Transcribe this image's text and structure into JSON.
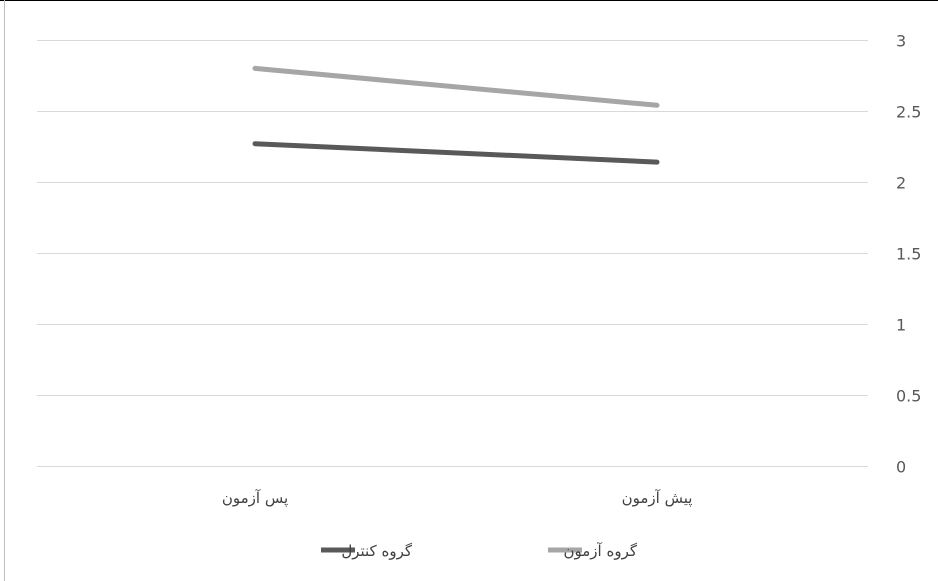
{
  "chart_data": {
    "type": "line",
    "categories": [
      "پس آزمون",
      "پیش آزمون"
    ],
    "series": [
      {
        "name": "گروه آزمون",
        "values": [
          2.8,
          2.54
        ],
        "color": "#a6a6a6"
      },
      {
        "name": "گروه کنترل",
        "values": [
          2.27,
          2.14
        ],
        "color": "#595959"
      }
    ],
    "ylim": [
      0,
      3
    ],
    "yticks": [
      "0",
      "0.5",
      "1",
      "1.5",
      "2",
      "2.5",
      "3"
    ],
    "y_axis_side": "right",
    "grid": true,
    "legend": "bottom"
  }
}
